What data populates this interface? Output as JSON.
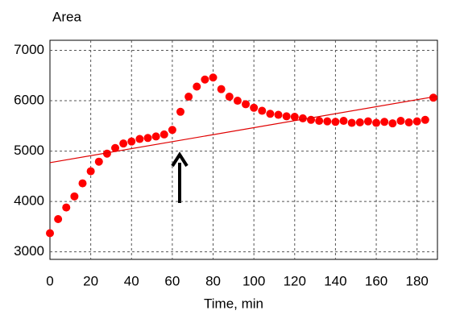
{
  "chart_data": {
    "type": "scatter",
    "y_label": "Area",
    "x_label": "Time, min",
    "xlim": [
      0,
      190
    ],
    "xticks": [
      0,
      20,
      40,
      60,
      80,
      100,
      120,
      140,
      160,
      180
    ],
    "ylim": [
      2850,
      7200
    ],
    "yticks": [
      3000,
      4000,
      5000,
      6000,
      7000
    ],
    "grid": true,
    "series": [
      {
        "color": "#ff0000",
        "mode": "markers",
        "x": [
          0,
          4,
          8,
          12,
          16,
          20,
          24,
          28,
          32,
          36,
          40,
          44,
          48,
          52,
          56,
          60,
          64,
          68,
          72,
          76,
          80,
          84,
          88,
          92,
          96,
          100,
          104,
          108,
          112,
          116,
          120,
          124,
          128,
          132,
          136,
          140,
          144,
          148,
          152,
          156,
          160,
          164,
          168,
          172,
          176,
          180,
          184,
          188
        ],
        "values": [
          3370,
          3650,
          3880,
          4100,
          4360,
          4600,
          4790,
          4950,
          5060,
          5150,
          5190,
          5240,
          5260,
          5290,
          5330,
          5420,
          5780,
          6080,
          6280,
          6420,
          6460,
          6230,
          6080,
          6000,
          5930,
          5860,
          5800,
          5740,
          5720,
          5690,
          5680,
          5650,
          5620,
          5600,
          5590,
          5580,
          5600,
          5560,
          5570,
          5590,
          5560,
          5580,
          5550,
          5600,
          5570,
          5590,
          5620,
          6060
        ]
      },
      {
        "color": "#e00000",
        "mode": "line",
        "x": [
          0,
          190
        ],
        "values": [
          4770,
          6090
        ]
      }
    ]
  }
}
